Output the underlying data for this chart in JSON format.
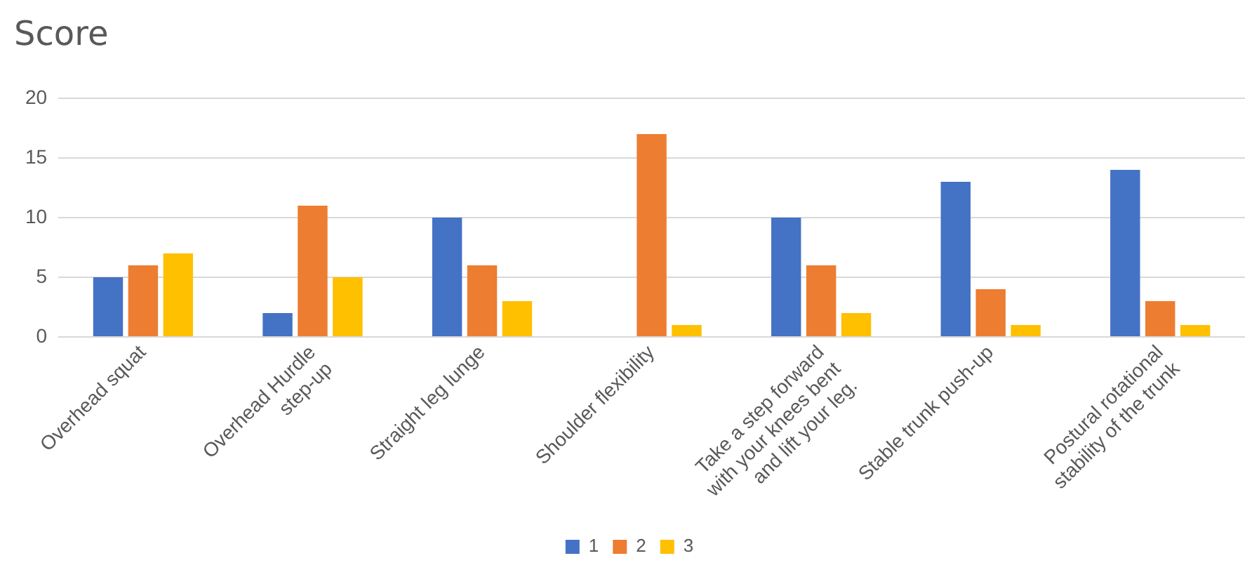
{
  "chart_data": {
    "type": "bar",
    "title": "Score",
    "categories": [
      "Overhead squat",
      "Overhead Hurdle step-up",
      "Straight leg lunge",
      "Shoulder flexibility",
      "Take a step forward with your knees bent and lift your leg.",
      "Stable trunk push-up",
      "Postural rotational stability of the trunk"
    ],
    "series": [
      {
        "name": "1",
        "color": "#4472c4",
        "values": [
          5,
          2,
          10,
          0,
          10,
          13,
          14
        ]
      },
      {
        "name": "2",
        "color": "#ed7d31",
        "values": [
          6,
          11,
          6,
          17,
          6,
          4,
          3
        ]
      },
      {
        "name": "3",
        "color": "#ffc000",
        "values": [
          7,
          5,
          3,
          1,
          2,
          1,
          1
        ]
      }
    ],
    "ylim": [
      0,
      20
    ],
    "yticks": [
      0,
      5,
      10,
      15,
      20
    ],
    "grid": "y",
    "legend": "bottom"
  }
}
